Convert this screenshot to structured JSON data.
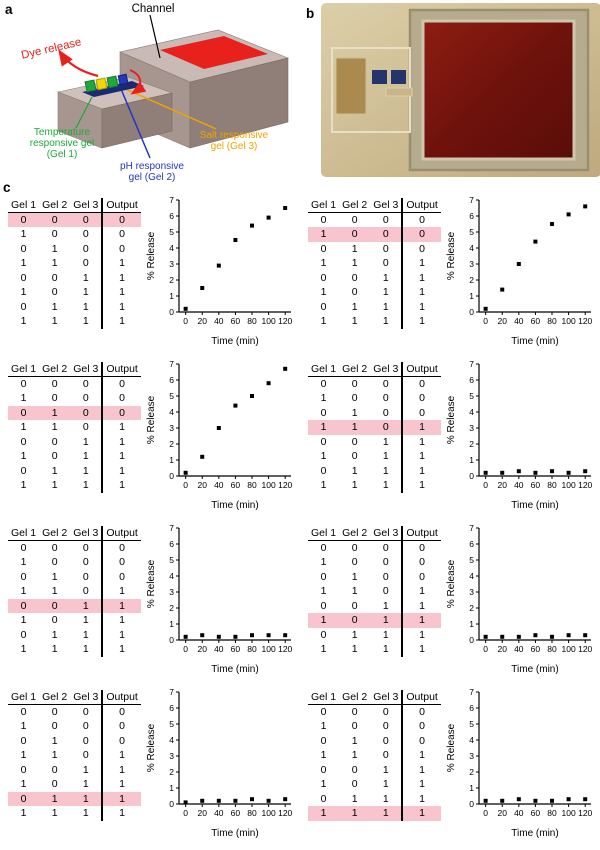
{
  "figure": {
    "panel_a_label": "a",
    "panel_b_label": "b",
    "panel_c_label": "c"
  },
  "panel_a": {
    "channel_label": "Channel",
    "dye_release_label": "Dye release",
    "gel1_lines": [
      "Temperature",
      "responsive gel",
      "(Gel 1)"
    ],
    "gel2_lines": [
      "pH responsive",
      "gel (Gel 2)"
    ],
    "gel3_lines": [
      "Salt responsive",
      "gel (Gel 3)"
    ],
    "colors": {
      "gel1": "#1fa83c",
      "gel2": "#2535c4",
      "gel3": "#eda400",
      "dye": "#e8211d"
    }
  },
  "panel_c": {
    "table_headers": [
      "Gel 1",
      "Gel 2",
      "Gel 3",
      "Output"
    ],
    "table_rows": [
      [
        0,
        0,
        0,
        0
      ],
      [
        1,
        0,
        0,
        0
      ],
      [
        0,
        1,
        0,
        0
      ],
      [
        1,
        1,
        0,
        1
      ],
      [
        0,
        0,
        1,
        1
      ],
      [
        1,
        0,
        1,
        1
      ],
      [
        0,
        1,
        1,
        1
      ],
      [
        1,
        1,
        1,
        1
      ]
    ],
    "highlight_color": "#f8c5ce",
    "cells": [
      {
        "highlight_row": 0
      },
      {
        "highlight_row": 1
      },
      {
        "highlight_row": 2
      },
      {
        "highlight_row": 3
      },
      {
        "highlight_row": 4
      },
      {
        "highlight_row": 5
      },
      {
        "highlight_row": 6
      },
      {
        "highlight_row": 7
      }
    ]
  },
  "chart_data": [
    {
      "type": "scatter",
      "x": [
        0,
        20,
        40,
        60,
        80,
        100,
        120
      ],
      "y": [
        0.2,
        1.5,
        2.9,
        4.5,
        5.4,
        5.9,
        6.5
      ],
      "xlabel": "Time (min)",
      "ylabel": "% Release",
      "xlim": [
        -8,
        127
      ],
      "ylim": [
        0,
        7
      ],
      "xticks": [
        0,
        20,
        40,
        60,
        80,
        100,
        120
      ],
      "yticks": [
        0,
        1,
        2,
        3,
        4,
        5,
        6,
        7
      ]
    },
    {
      "type": "scatter",
      "x": [
        0,
        20,
        40,
        60,
        80,
        100,
        120
      ],
      "y": [
        0.2,
        1.4,
        3.0,
        4.4,
        5.5,
        6.1,
        6.6
      ],
      "xlabel": "Time (min)",
      "ylabel": "% Release",
      "xlim": [
        -8,
        127
      ],
      "ylim": [
        0,
        7
      ],
      "xticks": [
        0,
        20,
        40,
        60,
        80,
        100,
        120
      ],
      "yticks": [
        0,
        1,
        2,
        3,
        4,
        5,
        6,
        7
      ]
    },
    {
      "type": "scatter",
      "x": [
        0,
        20,
        40,
        60,
        80,
        100,
        120
      ],
      "y": [
        0.2,
        1.2,
        3.0,
        4.4,
        5.0,
        5.8,
        6.7
      ],
      "xlabel": "Time (min)",
      "ylabel": "% Release",
      "xlim": [
        -8,
        127
      ],
      "ylim": [
        0,
        7
      ],
      "xticks": [
        0,
        20,
        40,
        60,
        80,
        100,
        120
      ],
      "yticks": [
        0,
        1,
        2,
        3,
        4,
        5,
        6,
        7
      ]
    },
    {
      "type": "scatter",
      "x": [
        0,
        20,
        40,
        60,
        80,
        100,
        120
      ],
      "y": [
        0.2,
        0.2,
        0.3,
        0.2,
        0.3,
        0.2,
        0.3
      ],
      "xlabel": "Time (min)",
      "ylabel": "% Release",
      "xlim": [
        -8,
        127
      ],
      "ylim": [
        0,
        7
      ],
      "xticks": [
        0,
        20,
        40,
        60,
        80,
        100,
        120
      ],
      "yticks": [
        0,
        1,
        2,
        3,
        4,
        5,
        6,
        7
      ]
    },
    {
      "type": "scatter",
      "x": [
        0,
        20,
        40,
        60,
        80,
        100,
        120
      ],
      "y": [
        0.2,
        0.3,
        0.2,
        0.2,
        0.3,
        0.3,
        0.3
      ],
      "xlabel": "Time (min)",
      "ylabel": "% Release",
      "xlim": [
        -8,
        127
      ],
      "ylim": [
        0,
        7
      ],
      "xticks": [
        0,
        20,
        40,
        60,
        80,
        100,
        120
      ],
      "yticks": [
        0,
        1,
        2,
        3,
        4,
        5,
        6,
        7
      ]
    },
    {
      "type": "scatter",
      "x": [
        0,
        20,
        40,
        60,
        80,
        100,
        120
      ],
      "y": [
        0.2,
        0.2,
        0.2,
        0.3,
        0.2,
        0.3,
        0.3
      ],
      "xlabel": "Time (min)",
      "ylabel": "% Release",
      "xlim": [
        -8,
        127
      ],
      "ylim": [
        0,
        7
      ],
      "xticks": [
        0,
        20,
        40,
        60,
        80,
        100,
        120
      ],
      "yticks": [
        0,
        1,
        2,
        3,
        4,
        5,
        6,
        7
      ]
    },
    {
      "type": "scatter",
      "x": [
        0,
        20,
        40,
        60,
        80,
        100,
        120
      ],
      "y": [
        0.1,
        0.2,
        0.2,
        0.2,
        0.3,
        0.2,
        0.3
      ],
      "xlabel": "Time (min)",
      "ylabel": "% Release",
      "xlim": [
        -8,
        127
      ],
      "ylim": [
        0,
        7
      ],
      "xticks": [
        0,
        20,
        40,
        60,
        80,
        100,
        120
      ],
      "yticks": [
        0,
        1,
        2,
        3,
        4,
        5,
        6,
        7
      ]
    },
    {
      "type": "scatter",
      "x": [
        0,
        20,
        40,
        60,
        80,
        100,
        120
      ],
      "y": [
        0.2,
        0.2,
        0.3,
        0.2,
        0.2,
        0.3,
        0.3
      ],
      "xlabel": "Time (min)",
      "ylabel": "% Release",
      "xlim": [
        -8,
        127
      ],
      "ylim": [
        0,
        7
      ],
      "xticks": [
        0,
        20,
        40,
        60,
        80,
        100,
        120
      ],
      "yticks": [
        0,
        1,
        2,
        3,
        4,
        5,
        6,
        7
      ]
    }
  ]
}
